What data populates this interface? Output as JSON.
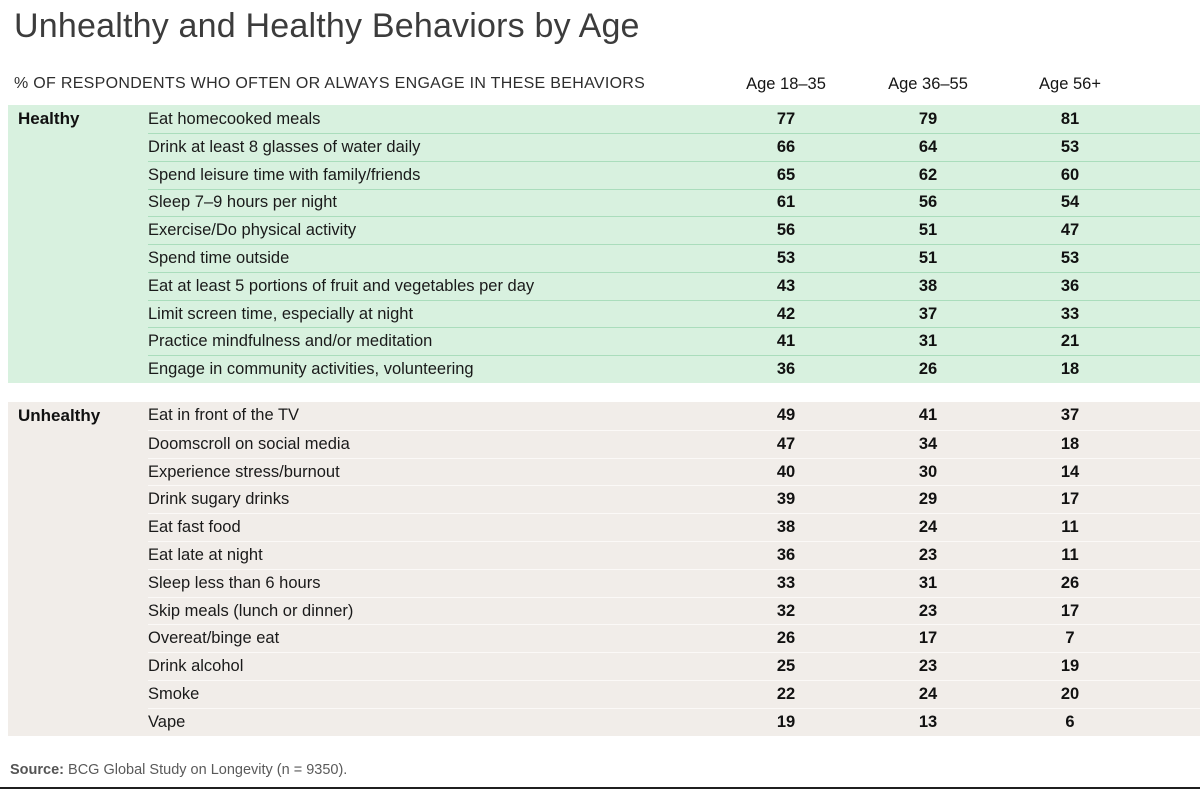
{
  "title": "Unhealthy and Healthy Behaviors by Age",
  "source": {
    "label": "Source:",
    "text": "BCG Global Study on Longevity (n = 9350)."
  },
  "colors": {
    "healthy_bg": "#d8f1df",
    "healthy_divider": "#aaddbc",
    "unhealthy_bg": "#f1ede9",
    "unhealthy_divider": "#fbf9f7",
    "bottom_rule": "#1f1f1f"
  },
  "chart_data": {
    "type": "table",
    "title": "Unhealthy and Healthy Behaviors by Age",
    "subtitle": "% OF RESPONDENTS WHO OFTEN OR ALWAYS ENGAGE IN THESE BEHAVIORS",
    "columns": [
      "Age 18–35",
      "Age 36–55",
      "Age 56+"
    ],
    "sections": [
      {
        "label": "Healthy",
        "rows": [
          {
            "behavior": "Eat homecooked meals",
            "values": [
              77,
              79,
              81
            ]
          },
          {
            "behavior": "Drink at least 8 glasses of water daily",
            "values": [
              66,
              64,
              53
            ]
          },
          {
            "behavior": "Spend leisure time with family/friends",
            "values": [
              65,
              62,
              60
            ]
          },
          {
            "behavior": "Sleep 7–9 hours per night",
            "values": [
              61,
              56,
              54
            ]
          },
          {
            "behavior": "Exercise/Do physical activity",
            "values": [
              56,
              51,
              47
            ]
          },
          {
            "behavior": "Spend time outside",
            "values": [
              53,
              51,
              53
            ]
          },
          {
            "behavior": "Eat at least 5 portions of fruit and vegetables per day",
            "values": [
              43,
              38,
              36
            ]
          },
          {
            "behavior": "Limit screen time, especially at night",
            "values": [
              42,
              37,
              33
            ]
          },
          {
            "behavior": "Practice mindfulness and/or meditation",
            "values": [
              41,
              31,
              21
            ]
          },
          {
            "behavior": "Engage in community activities, volunteering",
            "values": [
              36,
              26,
              18
            ]
          }
        ]
      },
      {
        "label": "Unhealthy",
        "rows": [
          {
            "behavior": "Eat in front of the TV",
            "values": [
              49,
              41,
              37
            ]
          },
          {
            "behavior": "Doomscroll on social media",
            "values": [
              47,
              34,
              18
            ]
          },
          {
            "behavior": "Experience stress/burnout",
            "values": [
              40,
              30,
              14
            ]
          },
          {
            "behavior": "Drink sugary drinks",
            "values": [
              39,
              29,
              17
            ]
          },
          {
            "behavior": "Eat fast food",
            "values": [
              38,
              24,
              11
            ]
          },
          {
            "behavior": "Eat late at night",
            "values": [
              36,
              23,
              11
            ]
          },
          {
            "behavior": "Sleep less than 6 hours",
            "values": [
              33,
              31,
              26
            ]
          },
          {
            "behavior": "Skip meals (lunch or dinner)",
            "values": [
              32,
              23,
              17
            ]
          },
          {
            "behavior": "Overeat/binge eat",
            "values": [
              26,
              17,
              7
            ]
          },
          {
            "behavior": "Drink alcohol",
            "values": [
              25,
              23,
              19
            ]
          },
          {
            "behavior": "Smoke",
            "values": [
              22,
              24,
              20
            ]
          },
          {
            "behavior": "Vape",
            "values": [
              19,
              13,
              6
            ]
          }
        ]
      }
    ],
    "source": "Source: BCG Global Study on Longevity (n = 9350)."
  }
}
